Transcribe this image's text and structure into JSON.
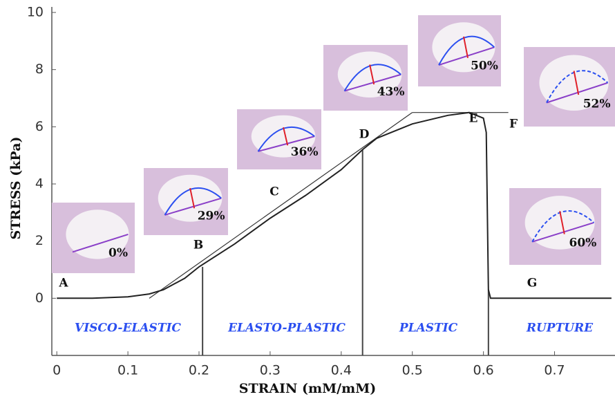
{
  "chart_data": {
    "type": "line",
    "x_label": "STRAIN (mM/mM)",
    "y_label": "STRESS (kPa)",
    "x": [
      0,
      0.05,
      0.1,
      0.13,
      0.15,
      0.18,
      0.2,
      0.25,
      0.3,
      0.35,
      0.4,
      0.43,
      0.45,
      0.5,
      0.55,
      0.58,
      0.6,
      0.604,
      0.607,
      0.61,
      0.65,
      0.7,
      0.78
    ],
    "values": [
      0,
      0,
      0.05,
      0.15,
      0.3,
      0.7,
      1.1,
      1.9,
      2.8,
      3.6,
      4.5,
      5.2,
      5.6,
      6.1,
      6.4,
      6.5,
      6.3,
      5.8,
      0.3,
      0,
      0,
      0,
      0
    ],
    "color": "#222",
    "xlim": [
      -0.007,
      0.785
    ],
    "ylim": [
      -2,
      10
    ],
    "xticks": [
      0,
      0.1,
      0.2,
      0.3,
      0.4,
      0.5,
      0.6,
      0.7
    ],
    "yticks": [
      0,
      2,
      4,
      6,
      8,
      10
    ],
    "grid": false,
    "stage_boundaries": [
      0.205,
      0.43,
      0.607
    ],
    "tangent": {
      "x": [
        0.13,
        0.5
      ],
      "y": [
        0,
        6.5
      ]
    },
    "plateau": {
      "x": [
        0.5,
        0.635
      ],
      "y": [
        6.5,
        6.5
      ]
    },
    "regions": [
      "VISCO-ELASTIC",
      "ELASTO-PLASTIC",
      "PLASTIC",
      "RUPTURE"
    ],
    "points": [
      "A",
      "B",
      "C",
      "D",
      "E",
      "F",
      "G"
    ],
    "insets": [
      "0%",
      "29%",
      "36%",
      "43%",
      "50%",
      "52%",
      "60%"
    ]
  }
}
